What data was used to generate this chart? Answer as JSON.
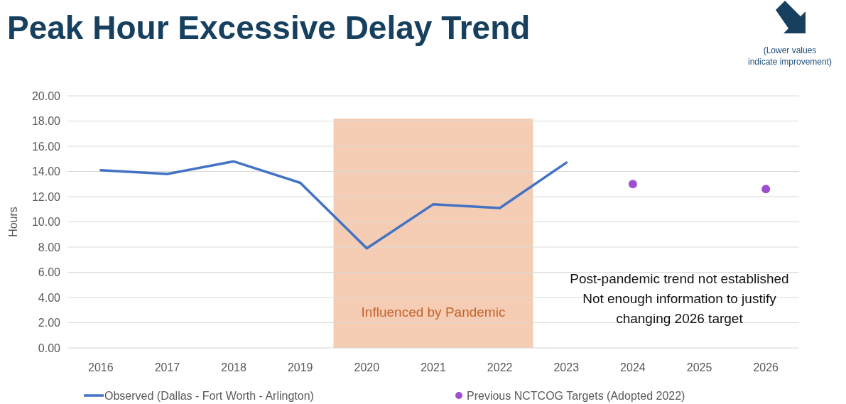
{
  "chart_data": {
    "type": "line",
    "title": "Peak Hour Excessive Delay Trend",
    "ylabel": "Hours",
    "xlim": [
      2015.5,
      2026.5
    ],
    "xticks": [
      2016,
      2017,
      2018,
      2019,
      2020,
      2021,
      2022,
      2023,
      2024,
      2025,
      2026
    ],
    "ylim": [
      0,
      20
    ],
    "yticks": [
      {
        "value": 0,
        "label": "0.00"
      },
      {
        "value": 2,
        "label": "2.00"
      },
      {
        "value": 4,
        "label": "4.00"
      },
      {
        "value": 6,
        "label": "6.00"
      },
      {
        "value": 8,
        "label": "8.00"
      },
      {
        "value": 10,
        "label": "10.00"
      },
      {
        "value": 12,
        "label": "12.00"
      },
      {
        "value": 14,
        "label": "14.00"
      },
      {
        "value": 16,
        "label": "16.00"
      },
      {
        "value": 18,
        "label": "18.00"
      },
      {
        "value": 20,
        "label": "20.00"
      }
    ],
    "series": [
      {
        "name": "Observed (Dallas - Fort Worth - Arlington)",
        "color": "#4472c4",
        "x": [
          2016,
          2017,
          2018,
          2019,
          2020,
          2021,
          2022,
          2023
        ],
        "values": [
          14.1,
          13.8,
          14.8,
          13.1,
          7.9,
          11.4,
          11.1,
          14.7
        ]
      },
      {
        "name": "Previous NCTCOG Targets (Adopted 2022)",
        "type": "scatter",
        "color": "#9e4fd1",
        "x": [
          2024,
          2026
        ],
        "values": [
          13,
          12.6
        ]
      }
    ],
    "bands": [
      {
        "axis": "x",
        "from": 2019.5,
        "to": 2022.5,
        "label": "Influenced by Pandemic",
        "color": "#f4cdb4"
      }
    ],
    "annotations": [
      "Post-pandemic trend not established\nNot enough information to justify\nchanging 2026 target",
      "(Lower values\nindicate improvement)"
    ],
    "grid": "y",
    "legend": "bottom"
  }
}
